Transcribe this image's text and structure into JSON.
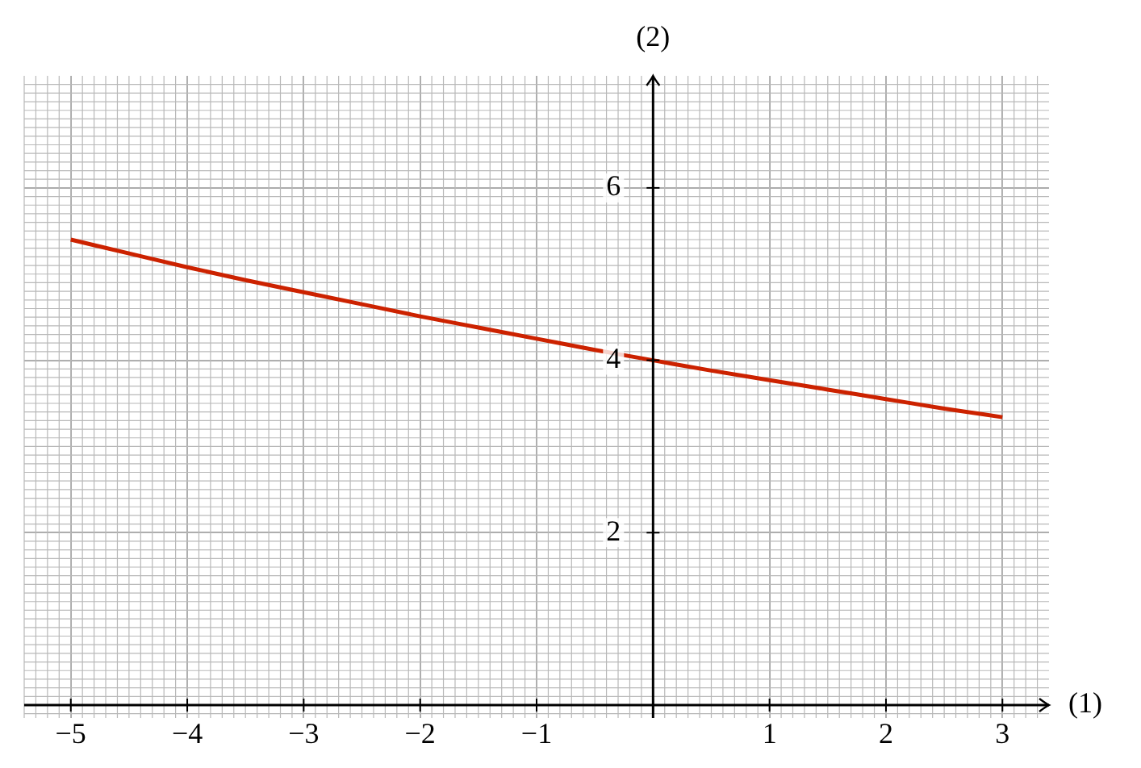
{
  "chart_data": {
    "type": "line",
    "xlabel": "(1)",
    "ylabel": "(2)",
    "x": [
      -5,
      -4.5,
      -4,
      -3.5,
      -3,
      -2.5,
      -2,
      -1.5,
      -1,
      -0.5,
      0,
      0.5,
      1,
      1.5,
      2,
      2.5,
      3
    ],
    "series": [
      {
        "color": "#cc2200",
        "values": [
          5.4,
          5.24,
          5.08,
          4.93,
          4.79,
          4.65,
          4.51,
          4.38,
          4.25,
          4.12,
          4,
          3.88,
          3.77,
          3.66,
          3.55,
          3.44,
          3.34
        ]
      }
    ],
    "xlim": [
      -5.4,
      3.4
    ],
    "ylim": [
      -0.15,
      7.3
    ],
    "xticks": [
      -5,
      -4,
      -3,
      -2,
      -1,
      {
        "value": 0,
        "label": null
      },
      1,
      2,
      3
    ],
    "yticks": [
      {
        "value": 0,
        "label": null
      },
      2,
      4,
      6
    ],
    "grid": true,
    "legend": false,
    "marker": "none",
    "line_style": "solid"
  }
}
